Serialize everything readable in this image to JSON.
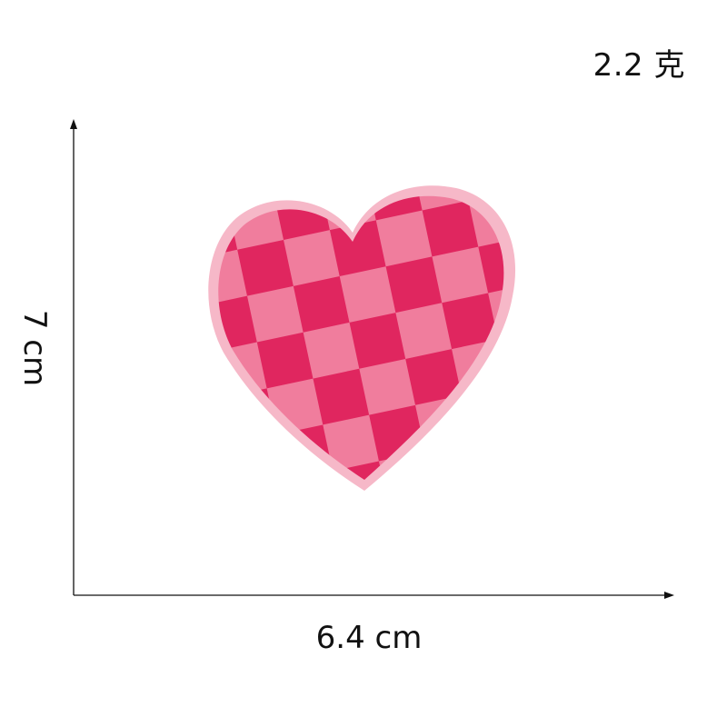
{
  "weight_label": "2.2 克",
  "width_label": "6.4 cm",
  "height_label": "7 cm",
  "product": {
    "pattern": "checkered heart",
    "colors": {
      "dark": "#e0265f",
      "light": "#f07d9d",
      "border": "#f6b8c8"
    }
  }
}
